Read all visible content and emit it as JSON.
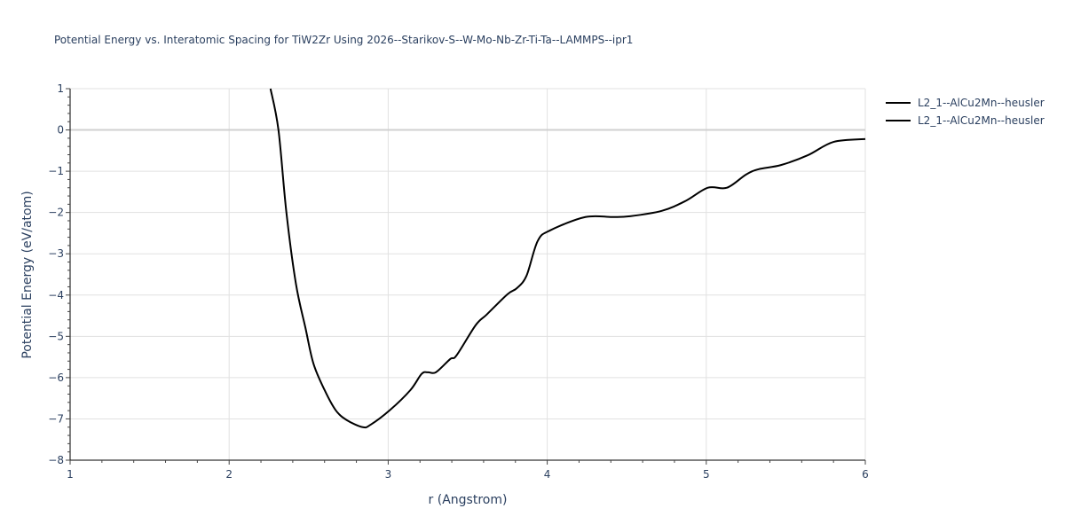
{
  "chart_data": {
    "type": "line",
    "title": "Potential Energy vs. Interatomic Spacing for TiW2Zr Using 2026--Starikov-S--W-Mo-Nb-Zr-Ti-Ta--LAMMPS--ipr1",
    "xlabel": "r (Angstrom)",
    "ylabel": "Potential Energy (eV/atom)",
    "xlim": [
      1,
      6
    ],
    "ylim": [
      -8,
      1
    ],
    "x_ticks": [
      "1",
      "2",
      "3",
      "4",
      "5",
      "6"
    ],
    "y_ticks": [
      "1",
      "0",
      "−1",
      "−2",
      "−3",
      "−4",
      "−5",
      "−6",
      "−7",
      "−8"
    ],
    "grid": true,
    "legend_position": "top-right-outside",
    "series": [
      {
        "name": "L2_1--AlCu2Mn--heusler",
        "color": "#000000",
        "x": [
          2.26,
          2.31,
          2.36,
          2.42,
          2.48,
          2.53,
          2.6,
          2.67,
          2.74,
          2.84,
          2.89,
          3.01,
          3.14,
          3.21,
          3.25,
          3.3,
          3.39,
          3.43,
          3.55,
          3.62,
          3.75,
          3.81,
          3.87,
          3.94,
          4.02,
          4.24,
          4.41,
          4.52,
          4.72,
          4.87,
          5.01,
          5.13,
          5.25,
          5.33,
          5.47,
          5.64,
          5.8,
          6.0
        ],
        "y": [
          1.0,
          0.0,
          -2.0,
          -3.73,
          -4.8,
          -5.66,
          -6.3,
          -6.79,
          -7.03,
          -7.2,
          -7.14,
          -6.79,
          -6.3,
          -5.91,
          -5.87,
          -5.87,
          -5.55,
          -5.46,
          -4.73,
          -4.47,
          -3.98,
          -3.83,
          -3.53,
          -2.69,
          -2.43,
          -2.11,
          -2.11,
          -2.09,
          -1.96,
          -1.72,
          -1.4,
          -1.4,
          -1.08,
          -0.95,
          -0.85,
          -0.61,
          -0.29,
          -0.22
        ]
      },
      {
        "name": "L2_1--AlCu2Mn--heusler",
        "color": "#000000",
        "x": [],
        "y": []
      }
    ]
  },
  "legend": {
    "items": [
      {
        "label": "L2_1--AlCu2Mn--heusler",
        "color": "#000000"
      },
      {
        "label": "L2_1--AlCu2Mn--heusler",
        "color": "#000000"
      }
    ]
  },
  "colors": {
    "text": "#2a3f5f",
    "grid": "#e1e1e1",
    "zeroline": "#d0d0d0",
    "line": "#000000"
  }
}
